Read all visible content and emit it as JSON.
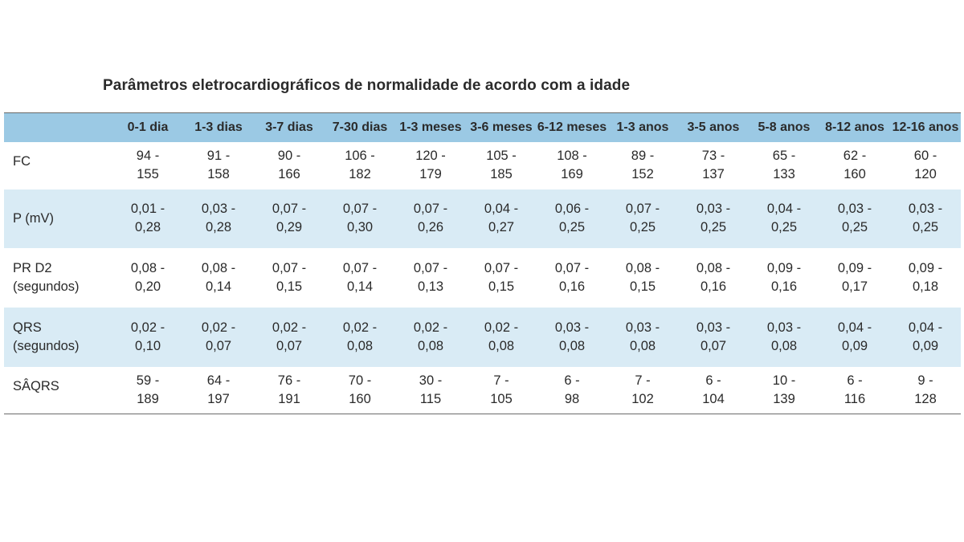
{
  "title": "Parâmetros eletrocardiográficos de normalidade de acordo com a idade",
  "columns": [
    "0-1 dia",
    "1-3 dias",
    "3-7 dias",
    "7-30 dias",
    "1-3 meses",
    "3-6 meses",
    "6-12 meses",
    "1-3 anos",
    "3-5 anos",
    "5-8 anos",
    "8-12 anos",
    "12-16 anos"
  ],
  "rows": [
    {
      "label_line1": "FC",
      "label_line2": "",
      "cells": [
        [
          "94 -",
          "155"
        ],
        [
          "91 -",
          "158"
        ],
        [
          "90 -",
          "166"
        ],
        [
          "106 -",
          "182"
        ],
        [
          "120 -",
          "179"
        ],
        [
          "105 -",
          "185"
        ],
        [
          "108 -",
          "169"
        ],
        [
          "89 -",
          "152"
        ],
        [
          "73 -",
          "137"
        ],
        [
          "65 -",
          "133"
        ],
        [
          "62 -",
          "160"
        ],
        [
          "60 -",
          "120"
        ]
      ]
    },
    {
      "label_line1": "P (mV)",
      "label_line2": "",
      "cells": [
        [
          "0,01 -",
          "0,28"
        ],
        [
          "0,03 -",
          "0,28"
        ],
        [
          "0,07 -",
          "0,29"
        ],
        [
          "0,07 -",
          "0,30"
        ],
        [
          "0,07 -",
          "0,26"
        ],
        [
          "0,04 -",
          "0,27"
        ],
        [
          "0,06 -",
          "0,25"
        ],
        [
          "0,07 -",
          "0,25"
        ],
        [
          "0,03 -",
          "0,25"
        ],
        [
          "0,04 -",
          "0,25"
        ],
        [
          "0,03 -",
          "0,25"
        ],
        [
          "0,03 -",
          "0,25"
        ]
      ]
    },
    {
      "label_line1": "PR D2",
      "label_line2": "(segundos)",
      "cells": [
        [
          "0,08 -",
          "0,20"
        ],
        [
          "0,08 -",
          "0,14"
        ],
        [
          "0,07 -",
          "0,15"
        ],
        [
          "0,07 -",
          "0,14"
        ],
        [
          "0,07 -",
          "0,13"
        ],
        [
          "0,07 -",
          "0,15"
        ],
        [
          "0,07 -",
          "0,16"
        ],
        [
          "0,08 -",
          "0,15"
        ],
        [
          "0,08 -",
          "0,16"
        ],
        [
          "0,09 -",
          "0,16"
        ],
        [
          "0,09 -",
          "0,17"
        ],
        [
          "0,09 -",
          "0,18"
        ]
      ]
    },
    {
      "label_line1": "QRS",
      "label_line2": "(segundos)",
      "cells": [
        [
          "0,02 -",
          "0,10"
        ],
        [
          "0,02 -",
          "0,07"
        ],
        [
          "0,02 -",
          "0,07"
        ],
        [
          "0,02 -",
          "0,08"
        ],
        [
          "0,02 -",
          "0,08"
        ],
        [
          "0,02 -",
          "0,08"
        ],
        [
          "0,03 -",
          "0,08"
        ],
        [
          "0,03 -",
          "0,08"
        ],
        [
          "0,03 -",
          "0,07"
        ],
        [
          "0,03 -",
          "0,08"
        ],
        [
          "0,04 -",
          "0,09"
        ],
        [
          "0,04 -",
          "0,09"
        ]
      ]
    },
    {
      "label_line1": "SÂQRS",
      "label_line2": "",
      "cells": [
        [
          "59 -",
          "189"
        ],
        [
          "64 -",
          "197"
        ],
        [
          "76 -",
          "191"
        ],
        [
          "70 -",
          "160"
        ],
        [
          "30 -",
          "115"
        ],
        [
          "7 -",
          "105"
        ],
        [
          "6 -",
          "98"
        ],
        [
          "7 -",
          "102"
        ],
        [
          "6 -",
          "104"
        ],
        [
          "10 -",
          "139"
        ],
        [
          "6 -",
          "116"
        ],
        [
          "9 -",
          "128"
        ]
      ]
    }
  ]
}
